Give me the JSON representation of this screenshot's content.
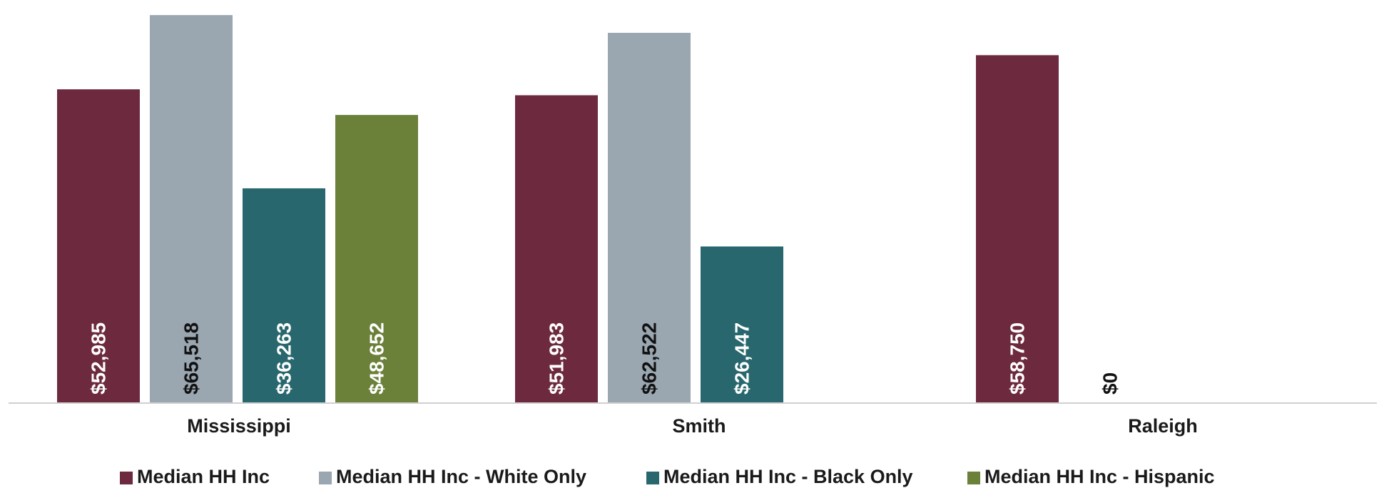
{
  "chart_data": {
    "type": "bar",
    "title": "",
    "xlabel": "",
    "ylabel": "",
    "ylim": [
      0,
      66500
    ],
    "grid": false,
    "legend_position": "bottom",
    "categories": [
      "Mississippi",
      "Smith",
      "Raleigh"
    ],
    "series": [
      {
        "name": "Median HH Inc",
        "color": "#6d2a3e",
        "label_color": "#ffffff",
        "values": [
          52985,
          51983,
          58750
        ],
        "labels": [
          "$52,985",
          "$51,983",
          "$58,750"
        ]
      },
      {
        "name": "Median HH Inc - White Only",
        "color": "#9aa6b0",
        "label_color": "#111111",
        "values": [
          65518,
          62522,
          0
        ],
        "labels": [
          "$65,518",
          "$62,522",
          "$0"
        ]
      },
      {
        "name": "Median HH Inc - Black Only",
        "color": "#27676d",
        "label_color": "#ffffff",
        "values": [
          36263,
          26447,
          null
        ],
        "labels": [
          "$36,263",
          "$26,447",
          ""
        ]
      },
      {
        "name": "Median HH Inc - Hispanic",
        "color": "#6b8039",
        "label_color": "#ffffff",
        "values": [
          48652,
          null,
          null
        ],
        "labels": [
          "$48,652",
          "",
          ""
        ]
      }
    ]
  }
}
